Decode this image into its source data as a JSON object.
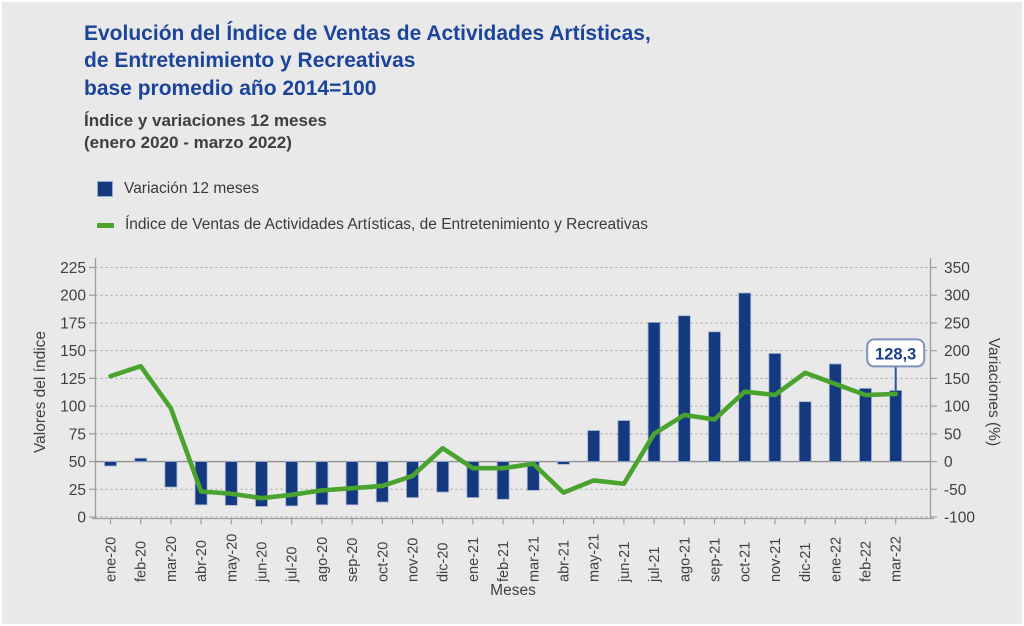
{
  "header": {
    "title": "Evolución del Índice de Ventas de Actividades Artísticas,\nde Entretenimiento y Recreativas\nbase promedio año 2014=100",
    "subtitle": "Índice y variaciones 12 meses\n(enero 2020 - marzo 2022)"
  },
  "legend": {
    "bar_label": "Variación 12 meses",
    "line_label": "Índice de Ventas de Actividades Artísticas, de Entretenimiento y Recreativas"
  },
  "colors": {
    "title_blue": "#1c449b",
    "bar_fill": "#15397f",
    "bar_edge": "#9fb1cf",
    "line_green": "#4aa32f",
    "grid": "#a0a0a0",
    "zero_line": "#8f8f8f",
    "axis": "#9e9e9e",
    "tick_text": "#404040",
    "annotation_border": "#7b93bd",
    "annotation_text": "#1b3f86",
    "background": "#e9e9e9"
  },
  "chart_data": {
    "type": "bar",
    "categories": [
      "ene-20",
      "feb-20",
      "mar-20",
      "abr-20",
      "may-20",
      "jun-20",
      "jul-20",
      "ago-20",
      "sep-20",
      "oct-20",
      "nov-20",
      "dic-20",
      "ene-21",
      "feb-21",
      "mar-21",
      "abr-21",
      "may-21",
      "jun-21",
      "jul-21",
      "ago-21",
      "sep-21",
      "oct-21",
      "nov-21",
      "dic-21",
      "ene-22",
      "feb-22",
      "mar-22"
    ],
    "series": [
      {
        "name": "Variación 12 meses",
        "type": "bar",
        "axis": "right",
        "values": [
          -8,
          6,
          -46,
          -78,
          -79,
          -81,
          -80,
          -78,
          -78,
          -73,
          -65,
          -55,
          -65,
          -68,
          -52,
          -5,
          56,
          74,
          251,
          263,
          234,
          304,
          195,
          108,
          176,
          132,
          128.3
        ]
      },
      {
        "name": "Índice de Ventas de Actividades Artísticas, de Entretenimiento y Recreativas",
        "type": "line",
        "axis": "left",
        "values": [
          127,
          136,
          98,
          23,
          21,
          17,
          20,
          24,
          26,
          28,
          37,
          62,
          44,
          44,
          48,
          22,
          33,
          30,
          75,
          92,
          88,
          113,
          110,
          130,
          120,
          110,
          111
        ]
      }
    ],
    "left_axis": {
      "label": "Valores del índice",
      "min": 0,
      "max": 225,
      "step": 25
    },
    "right_axis": {
      "label": "Variaciones (%)",
      "min": -100,
      "max": 350,
      "step": 50
    },
    "xlabel": "Meses",
    "grid": true,
    "legend_position": "top-left",
    "annotation": {
      "text": "128,3",
      "category": "mar-22",
      "series": "Variación 12 meses"
    }
  }
}
